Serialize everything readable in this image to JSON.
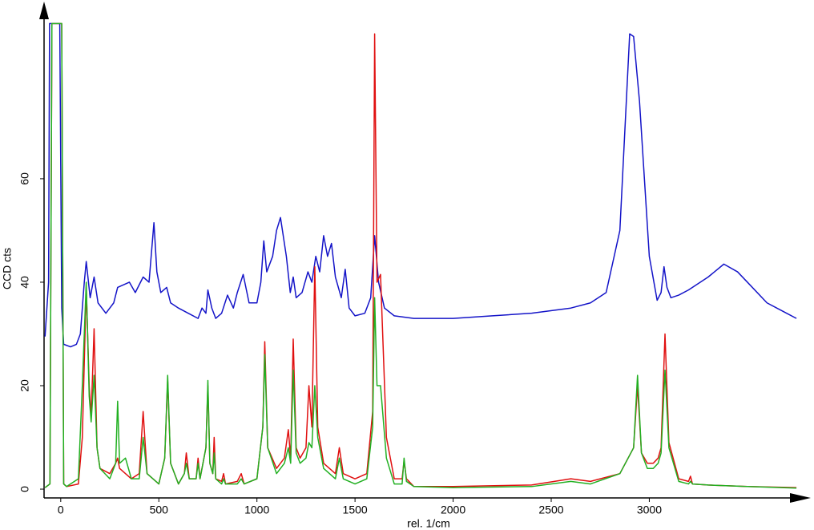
{
  "chart_data": {
    "type": "line",
    "x_label": "rel. 1/cm",
    "y_label": "CCD cts",
    "xlim": [
      -85,
      3815
    ],
    "ylim": [
      -1.7,
      93
    ],
    "xticks": [
      0,
      500,
      1000,
      1500,
      2000,
      2500,
      3000
    ],
    "yticks": [
      0,
      20,
      40,
      60
    ],
    "grid": false,
    "series": [
      {
        "color": "#1414c8",
        "x": [
          -80,
          -62,
          -57,
          -5,
          5,
          15,
          50,
          80,
          100,
          120,
          130,
          150,
          170,
          190,
          230,
          270,
          290,
          350,
          380,
          420,
          450,
          475,
          490,
          510,
          540,
          560,
          600,
          650,
          700,
          720,
          740,
          750,
          770,
          790,
          820,
          850,
          880,
          900,
          930,
          960,
          1000,
          1020,
          1035,
          1050,
          1080,
          1100,
          1120,
          1150,
          1170,
          1185,
          1200,
          1230,
          1260,
          1280,
          1300,
          1320,
          1340,
          1360,
          1380,
          1400,
          1430,
          1450,
          1470,
          1500,
          1550,
          1580,
          1600,
          1620,
          1650,
          1700,
          1800,
          1900,
          2000,
          2200,
          2400,
          2600,
          2700,
          2780,
          2850,
          2900,
          2920,
          2950,
          3000,
          3040,
          3060,
          3075,
          3090,
          3110,
          3150,
          3200,
          3300,
          3380,
          3450,
          3500,
          3600,
          3700,
          3750
        ],
        "values": [
          29.5,
          40,
          90,
          90,
          35,
          28,
          27.5,
          28,
          30,
          40,
          44,
          37,
          41,
          36,
          34,
          36,
          39,
          40,
          38,
          41,
          40,
          51.5,
          42,
          38,
          39,
          36,
          35,
          34,
          33,
          35,
          34,
          38.5,
          35,
          33,
          34,
          37.5,
          35,
          38,
          41.5,
          36,
          36,
          40,
          48,
          42,
          45,
          50,
          52.5,
          45,
          38,
          41,
          37,
          38,
          42,
          40,
          45,
          42,
          49,
          45,
          47.5,
          41,
          37,
          42.5,
          35,
          33.5,
          34,
          37,
          49,
          40,
          35,
          33.5,
          33,
          33,
          33,
          33.5,
          34,
          35,
          36,
          38,
          50,
          88,
          87.5,
          75,
          45,
          36.5,
          38,
          43,
          39,
          37,
          37.5,
          38.5,
          41,
          43.5,
          42,
          40,
          36,
          34,
          33
        ]
      },
      {
        "color": "#e01010",
        "x": [
          -80,
          -55,
          -45,
          5,
          15,
          30,
          90,
          110,
          130,
          145,
          155,
          170,
          185,
          200,
          250,
          280,
          290,
          300,
          330,
          360,
          400,
          420,
          440,
          500,
          530,
          545,
          560,
          600,
          630,
          640,
          655,
          690,
          700,
          710,
          740,
          750,
          760,
          775,
          782,
          790,
          820,
          830,
          840,
          900,
          920,
          935,
          1000,
          1030,
          1040,
          1055,
          1100,
          1140,
          1160,
          1172,
          1185,
          1200,
          1220,
          1250,
          1265,
          1280,
          1295,
          1310,
          1340,
          1400,
          1420,
          1440,
          1500,
          1560,
          1590,
          1600,
          1612,
          1630,
          1660,
          1700,
          1740,
          1750,
          1762,
          1800,
          2000,
          2400,
          2600,
          2700,
          2850,
          2920,
          2940,
          2960,
          2990,
          3020,
          3045,
          3060,
          3080,
          3100,
          3150,
          3200,
          3210,
          3220,
          3300,
          3500,
          3750
        ],
        "values": [
          0.3,
          1,
          90,
          90,
          1,
          0.5,
          1,
          10,
          39,
          20,
          14,
          31,
          8,
          4,
          3,
          5,
          6,
          4,
          3,
          2,
          3,
          15,
          3,
          1,
          6,
          21,
          5,
          1,
          3,
          7,
          2,
          2,
          6,
          2,
          8,
          20,
          5,
          3,
          10,
          2,
          1.5,
          3,
          1,
          1.5,
          3,
          1,
          2,
          12,
          28.5,
          8,
          4,
          6,
          11.5,
          6,
          29,
          8,
          6,
          8,
          20,
          12,
          43,
          12,
          5,
          3,
          8,
          3,
          2,
          3,
          15,
          88,
          40,
          41.5,
          10,
          2,
          2,
          5.5,
          2,
          0.5,
          0.5,
          0.8,
          2,
          1.5,
          3,
          8,
          20,
          7,
          5,
          5,
          6,
          8,
          30,
          9,
          2,
          1.5,
          2.5,
          1,
          0.8,
          0.5,
          0.3
        ]
      },
      {
        "color": "#22b022",
        "x": [
          -80,
          -55,
          -45,
          5,
          15,
          30,
          90,
          110,
          130,
          145,
          155,
          170,
          185,
          200,
          250,
          280,
          290,
          300,
          330,
          360,
          400,
          420,
          440,
          500,
          530,
          545,
          560,
          600,
          630,
          640,
          655,
          690,
          700,
          710,
          740,
          750,
          760,
          775,
          782,
          790,
          820,
          830,
          840,
          900,
          920,
          935,
          1000,
          1030,
          1040,
          1055,
          1100,
          1140,
          1160,
          1172,
          1185,
          1200,
          1220,
          1250,
          1265,
          1280,
          1295,
          1310,
          1340,
          1400,
          1420,
          1440,
          1500,
          1560,
          1590,
          1600,
          1612,
          1630,
          1660,
          1700,
          1740,
          1750,
          1762,
          1800,
          2000,
          2400,
          2600,
          2700,
          2850,
          2920,
          2940,
          2960,
          2990,
          3020,
          3045,
          3060,
          3080,
          3100,
          3150,
          3200,
          3210,
          3220,
          3300,
          3500,
          3750
        ],
        "values": [
          0.3,
          1,
          90,
          90,
          1,
          0.5,
          2,
          20,
          40,
          18,
          13,
          22,
          8,
          4,
          2,
          5,
          17,
          5,
          6,
          2,
          2,
          10,
          3,
          1,
          6,
          22,
          5,
          1,
          3,
          5,
          2,
          2,
          5,
          2,
          8,
          21,
          5,
          3,
          7,
          2,
          1,
          2,
          1,
          1,
          2,
          1,
          2,
          12,
          26,
          8,
          3,
          5,
          8,
          5,
          23,
          7,
          5,
          6,
          9,
          8,
          20,
          10,
          4,
          2,
          6,
          2,
          1,
          2,
          12,
          37,
          20,
          20,
          6,
          1,
          1,
          6,
          1.5,
          0.5,
          0.3,
          0.5,
          1.5,
          1,
          3,
          8,
          22,
          7,
          4,
          4,
          5,
          7,
          23,
          8,
          1.5,
          1,
          1.5,
          1,
          0.8,
          0.5,
          0.2
        ]
      }
    ]
  }
}
